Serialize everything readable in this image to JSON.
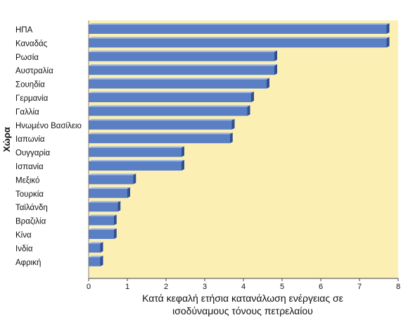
{
  "chart_data": {
    "type": "bar",
    "orientation": "horizontal",
    "categories": [
      "ΗΠΑ",
      "Καναδάς",
      "Ρωσία",
      "Αυστραλία",
      "Σουηδία",
      "Γερμανία",
      "Γαλλία",
      "Ηνωμένο Βασίλειο",
      "Ιαπωνία",
      "Ουγγαρία",
      "Ισπανία",
      "Μεξικό",
      "Τουρκία",
      "Ταϊλάνδη",
      "Βραζιλία",
      "Κίνα",
      "Ινδία",
      "Αφρική"
    ],
    "values": [
      7.7,
      7.7,
      4.8,
      4.8,
      4.6,
      4.2,
      4.1,
      3.7,
      3.65,
      2.4,
      2.4,
      1.15,
      1.0,
      0.75,
      0.65,
      0.65,
      0.3,
      0.3
    ],
    "xlabel": "Κατά κεφαλή ετήσια κατανάλωση ενέργειας σε ισοδύναμους τόνους πετρελαίου",
    "xlabel_lines": [
      "Κατά κεφαλή ετήσια κατανάλωση ενέργειας σε",
      "ισοδύναμους τόνους πετρελαίου"
    ],
    "ylabel": "Χώρα",
    "xlim": [
      0,
      8
    ],
    "xticks": [
      "0",
      "1",
      "2",
      "3",
      "4",
      "5",
      "6",
      "7",
      "8"
    ],
    "grid": false,
    "colors": {
      "plot_background": "#fbefb4",
      "bar_fill": "#5b7fc4",
      "bar_top": "#9fb8e6",
      "bar_side": "#2e4f93"
    }
  }
}
